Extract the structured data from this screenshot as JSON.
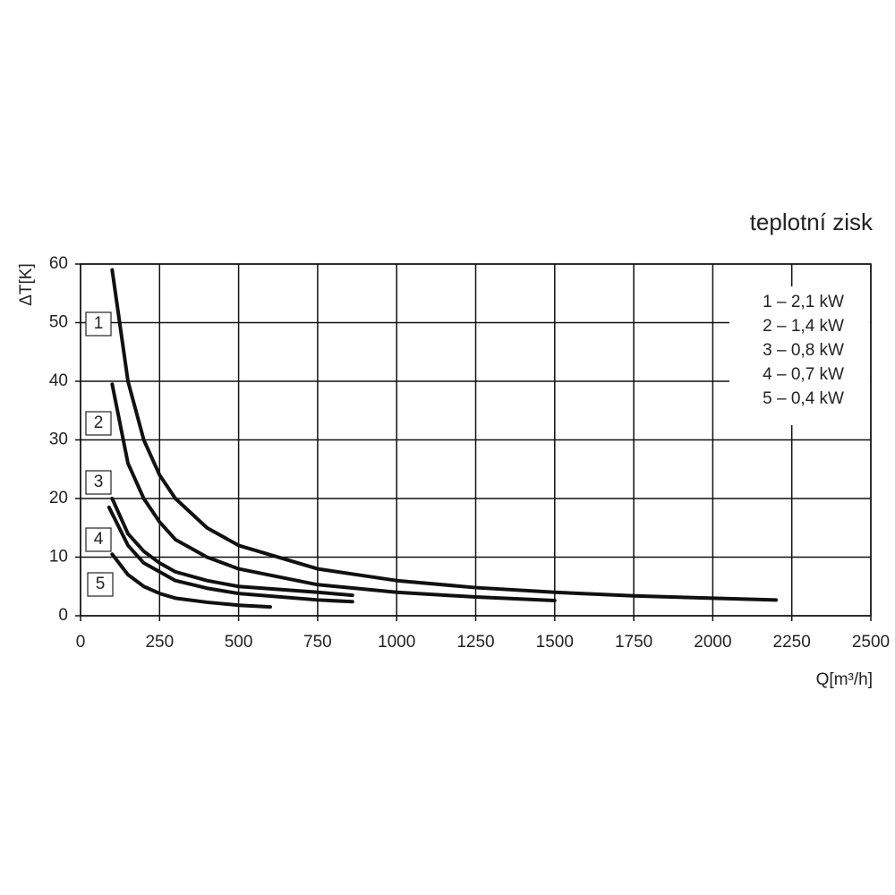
{
  "chart_data": {
    "type": "line",
    "title": "teplotní zisk",
    "x_label": "Q[m³/h]",
    "y_label": "ΔT[K]",
    "xlim": [
      0,
      2500
    ],
    "xticks": [
      0,
      250,
      500,
      750,
      1000,
      1250,
      1500,
      1750,
      2000,
      2250,
      2500
    ],
    "ylim": [
      0,
      60
    ],
    "yticks": [
      0,
      10,
      20,
      30,
      40,
      50,
      60
    ],
    "grid": true,
    "legend": "upper right",
    "series": [
      {
        "name": "1 – 2,1 kW",
        "label": "1",
        "color": "#111111",
        "x": [
          100,
          150,
          200,
          250,
          300,
          400,
          500,
          750,
          1000,
          1250,
          1500,
          1750,
          2000,
          2200
        ],
        "values": [
          59,
          40,
          30,
          24,
          20,
          15,
          12,
          8,
          6,
          4.8,
          4,
          3.4,
          3,
          2.7
        ]
      },
      {
        "name": "2 – 1,4 kW",
        "label": "2",
        "color": "#111111",
        "x": [
          100,
          150,
          200,
          250,
          300,
          400,
          500,
          750,
          1000,
          1250,
          1500
        ],
        "values": [
          39.5,
          26,
          20,
          16,
          13,
          10,
          8,
          5.3,
          4,
          3.2,
          2.6
        ]
      },
      {
        "name": "3 – 0,8 kW",
        "label": "3",
        "color": "#111111",
        "x": [
          100,
          150,
          200,
          250,
          300,
          400,
          500,
          750,
          860
        ],
        "values": [
          20,
          14,
          11,
          9,
          7.5,
          6,
          5,
          4,
          3.5
        ]
      },
      {
        "name": "4 – 0,7 kW",
        "label": "4",
        "color": "#111111",
        "x": [
          90,
          150,
          200,
          250,
          300,
          400,
          500,
          750,
          860
        ],
        "values": [
          18.5,
          12,
          9,
          7.5,
          6,
          4.7,
          3.8,
          2.7,
          2.4
        ]
      },
      {
        "name": "5 – 0,4 kW",
        "label": "5",
        "color": "#111111",
        "x": [
          100,
          150,
          200,
          250,
          300,
          400,
          500,
          600
        ],
        "values": [
          10.5,
          7,
          5,
          3.8,
          3,
          2.3,
          1.8,
          1.5
        ]
      }
    ]
  }
}
